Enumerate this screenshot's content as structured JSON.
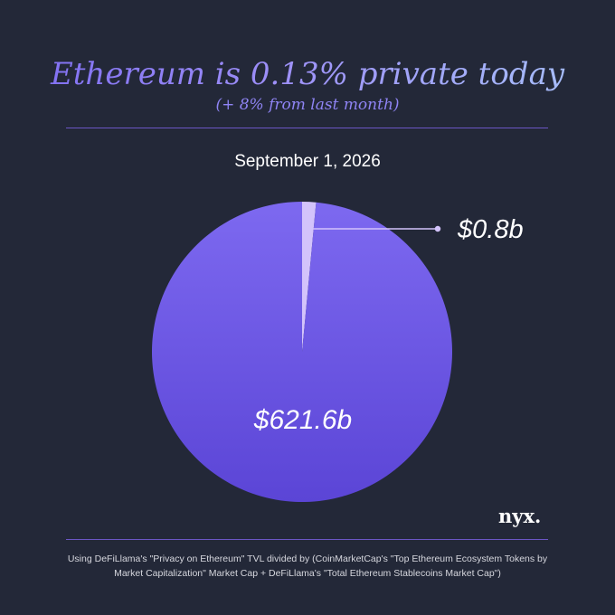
{
  "header": {
    "title": "Ethereum is 0.13% private today",
    "subtitle": "(+ 8% from last month)"
  },
  "date": "September 1, 2026",
  "brand": {
    "logo_text": "nyx."
  },
  "footer": {
    "note": "Using DeFiLlama's \"Privacy on Ethereum\" TVL divided by (CoinMarketCap's \"Top Ethereum Ecosystem Tokens by Market Capitalization\" Market Cap + DeFiLlama's \"Total Ethereum Stablecoins Market Cap\")"
  },
  "colors": {
    "background": "#232838",
    "main_slice_top": "#7d69f0",
    "main_slice_bottom": "#5b45d6",
    "private_slice": "#d3c3fb",
    "leader": "#d3c3fb",
    "rule": "#6b56c4"
  },
  "chart_data": {
    "type": "pie",
    "slices": [
      {
        "label": "$0.8b",
        "value": 0.8
      },
      {
        "label": "$621.6b",
        "value": 621.6
      }
    ]
  }
}
